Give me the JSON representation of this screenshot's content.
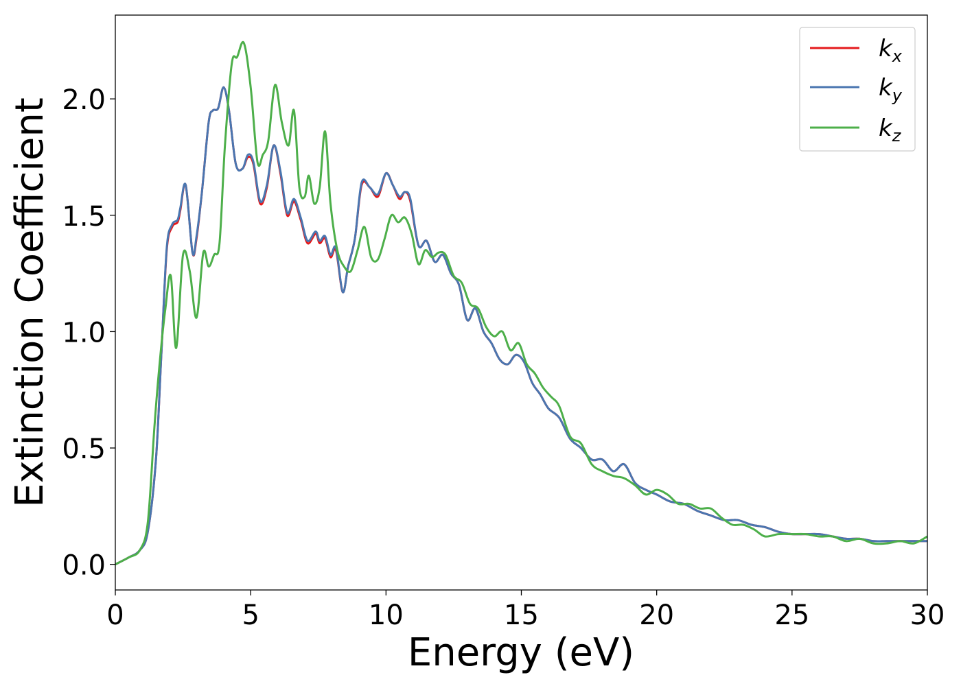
{
  "chart_data": {
    "type": "line",
    "xlabel": "Energy (eV)",
    "ylabel": "Extinction Coefficient",
    "xlim": [
      0,
      30
    ],
    "ylim": [
      -0.11,
      2.36
    ],
    "xticks": [
      0,
      5,
      10,
      15,
      20,
      25,
      30
    ],
    "yticks": [
      0.0,
      0.5,
      1.0,
      1.5,
      2.0
    ],
    "xtick_labels": [
      "0",
      "5",
      "10",
      "15",
      "20",
      "25",
      "30"
    ],
    "ytick_labels": [
      "0.0",
      "0.5",
      "1.0",
      "1.5",
      "2.0"
    ],
    "grid": false,
    "legend_position": "top-right",
    "series": [
      {
        "name": "k_x",
        "label_main": "k",
        "label_sub": "x",
        "color": "#e41a1c",
        "x": [
          0,
          0.5,
          0.9,
          1.2,
          1.5,
          1.7,
          1.9,
          2.1,
          2.3,
          2.4,
          2.6,
          2.85,
          3.0,
          3.2,
          3.45,
          3.6,
          3.8,
          4.0,
          4.2,
          4.45,
          4.7,
          4.9,
          5.1,
          5.35,
          5.6,
          5.85,
          6.1,
          6.35,
          6.6,
          6.85,
          7.1,
          7.4,
          7.55,
          7.75,
          7.95,
          8.15,
          8.4,
          8.6,
          8.85,
          9.1,
          9.4,
          9.7,
          10.0,
          10.25,
          10.5,
          10.7,
          10.9,
          11.2,
          11.5,
          11.8,
          12.1,
          12.4,
          12.7,
          13.0,
          13.3,
          13.6,
          13.9,
          14.2,
          14.5,
          14.8,
          15.1,
          15.4,
          15.7,
          16.0,
          16.4,
          16.8,
          17.2,
          17.6,
          18.0,
          18.4,
          18.8,
          19.2,
          19.6,
          20.0,
          20.5,
          21.0,
          21.5,
          22.0,
          22.5,
          23.0,
          23.5,
          24.0,
          24.5,
          25.0,
          25.5,
          26.0,
          26.5,
          27.0,
          27.5,
          28.0,
          28.5,
          29.0,
          29.5,
          30.0
        ],
        "y": [
          0.0,
          0.03,
          0.06,
          0.14,
          0.45,
          0.9,
          1.35,
          1.45,
          1.47,
          1.52,
          1.63,
          1.34,
          1.4,
          1.6,
          1.9,
          1.95,
          1.96,
          2.05,
          1.95,
          1.72,
          1.7,
          1.75,
          1.72,
          1.55,
          1.62,
          1.8,
          1.68,
          1.5,
          1.56,
          1.48,
          1.38,
          1.42,
          1.38,
          1.4,
          1.32,
          1.35,
          1.17,
          1.28,
          1.4,
          1.63,
          1.62,
          1.58,
          1.68,
          1.63,
          1.57,
          1.6,
          1.56,
          1.37,
          1.39,
          1.3,
          1.33,
          1.25,
          1.2,
          1.05,
          1.1,
          1.0,
          0.95,
          0.88,
          0.86,
          0.9,
          0.87,
          0.78,
          0.73,
          0.67,
          0.63,
          0.54,
          0.5,
          0.45,
          0.45,
          0.4,
          0.43,
          0.35,
          0.32,
          0.3,
          0.27,
          0.26,
          0.23,
          0.21,
          0.19,
          0.19,
          0.17,
          0.16,
          0.14,
          0.13,
          0.13,
          0.13,
          0.12,
          0.11,
          0.11,
          0.1,
          0.1,
          0.1,
          0.1,
          0.1
        ]
      },
      {
        "name": "k_y",
        "label_main": "k",
        "label_sub": "y",
        "color": "#4a76b0",
        "x": [
          0,
          0.5,
          0.9,
          1.2,
          1.5,
          1.7,
          1.9,
          2.1,
          2.3,
          2.4,
          2.6,
          2.85,
          3.0,
          3.2,
          3.45,
          3.6,
          3.8,
          4.0,
          4.2,
          4.45,
          4.7,
          4.9,
          5.1,
          5.35,
          5.6,
          5.85,
          6.1,
          6.35,
          6.6,
          6.85,
          7.1,
          7.4,
          7.55,
          7.75,
          7.95,
          8.15,
          8.4,
          8.6,
          8.85,
          9.1,
          9.4,
          9.7,
          10.0,
          10.25,
          10.5,
          10.7,
          10.9,
          11.2,
          11.5,
          11.8,
          12.1,
          12.4,
          12.7,
          13.0,
          13.3,
          13.6,
          13.9,
          14.2,
          14.5,
          14.8,
          15.1,
          15.4,
          15.7,
          16.0,
          16.4,
          16.8,
          17.2,
          17.6,
          18.0,
          18.4,
          18.8,
          19.2,
          19.6,
          20.0,
          20.5,
          21.0,
          21.5,
          22.0,
          22.5,
          23.0,
          23.5,
          24.0,
          24.5,
          25.0,
          25.5,
          26.0,
          26.5,
          27.0,
          27.5,
          28.0,
          28.5,
          29.0,
          29.5,
          30.0
        ],
        "y": [
          0.0,
          0.03,
          0.06,
          0.14,
          0.45,
          0.9,
          1.36,
          1.46,
          1.48,
          1.53,
          1.63,
          1.34,
          1.41,
          1.6,
          1.9,
          1.95,
          1.96,
          2.05,
          1.95,
          1.72,
          1.7,
          1.76,
          1.73,
          1.56,
          1.63,
          1.8,
          1.69,
          1.51,
          1.57,
          1.49,
          1.39,
          1.43,
          1.39,
          1.41,
          1.33,
          1.36,
          1.17,
          1.28,
          1.4,
          1.64,
          1.62,
          1.59,
          1.68,
          1.63,
          1.58,
          1.6,
          1.57,
          1.37,
          1.39,
          1.3,
          1.33,
          1.25,
          1.2,
          1.05,
          1.1,
          1.0,
          0.95,
          0.88,
          0.86,
          0.9,
          0.87,
          0.78,
          0.73,
          0.67,
          0.63,
          0.54,
          0.5,
          0.45,
          0.45,
          0.4,
          0.43,
          0.35,
          0.32,
          0.3,
          0.27,
          0.26,
          0.23,
          0.21,
          0.19,
          0.19,
          0.17,
          0.16,
          0.14,
          0.13,
          0.13,
          0.13,
          0.12,
          0.11,
          0.11,
          0.1,
          0.1,
          0.1,
          0.1,
          0.1
        ]
      },
      {
        "name": "k_z",
        "label_main": "k",
        "label_sub": "z",
        "color": "#4daf4a",
        "x": [
          0,
          0.5,
          0.9,
          1.2,
          1.45,
          1.65,
          1.85,
          2.05,
          2.25,
          2.5,
          2.75,
          3.0,
          3.25,
          3.45,
          3.65,
          3.85,
          4.05,
          4.3,
          4.5,
          4.75,
          5.0,
          5.25,
          5.45,
          5.65,
          5.9,
          6.15,
          6.4,
          6.6,
          6.8,
          7.0,
          7.15,
          7.35,
          7.55,
          7.75,
          7.95,
          8.2,
          8.45,
          8.7,
          8.95,
          9.2,
          9.45,
          9.7,
          9.95,
          10.2,
          10.45,
          10.7,
          10.95,
          11.2,
          11.45,
          11.7,
          11.95,
          12.2,
          12.5,
          12.8,
          13.1,
          13.4,
          13.7,
          14.0,
          14.3,
          14.6,
          14.9,
          15.2,
          15.5,
          15.8,
          16.1,
          16.4,
          16.8,
          17.2,
          17.6,
          18.0,
          18.4,
          18.8,
          19.2,
          19.6,
          20.0,
          20.4,
          20.8,
          21.2,
          21.6,
          22.0,
          22.4,
          22.8,
          23.2,
          23.6,
          24.0,
          24.5,
          25.0,
          25.5,
          26.0,
          26.5,
          27.0,
          27.5,
          28.0,
          28.5,
          29.0,
          29.5,
          30.0
        ],
        "y": [
          0.0,
          0.03,
          0.06,
          0.18,
          0.6,
          0.88,
          1.1,
          1.24,
          0.93,
          1.33,
          1.26,
          1.06,
          1.34,
          1.28,
          1.33,
          1.38,
          1.8,
          2.15,
          2.18,
          2.24,
          2.05,
          1.73,
          1.76,
          1.82,
          2.06,
          1.9,
          1.8,
          1.95,
          1.62,
          1.58,
          1.67,
          1.55,
          1.62,
          1.86,
          1.55,
          1.35,
          1.28,
          1.26,
          1.35,
          1.45,
          1.32,
          1.31,
          1.4,
          1.5,
          1.47,
          1.49,
          1.42,
          1.29,
          1.35,
          1.32,
          1.34,
          1.33,
          1.24,
          1.21,
          1.12,
          1.1,
          1.02,
          0.98,
          1.0,
          0.92,
          0.95,
          0.86,
          0.82,
          0.76,
          0.72,
          0.68,
          0.55,
          0.52,
          0.43,
          0.4,
          0.38,
          0.37,
          0.34,
          0.3,
          0.32,
          0.3,
          0.26,
          0.26,
          0.24,
          0.24,
          0.2,
          0.17,
          0.17,
          0.15,
          0.12,
          0.13,
          0.13,
          0.13,
          0.12,
          0.12,
          0.1,
          0.11,
          0.09,
          0.09,
          0.1,
          0.09,
          0.12
        ]
      }
    ]
  }
}
